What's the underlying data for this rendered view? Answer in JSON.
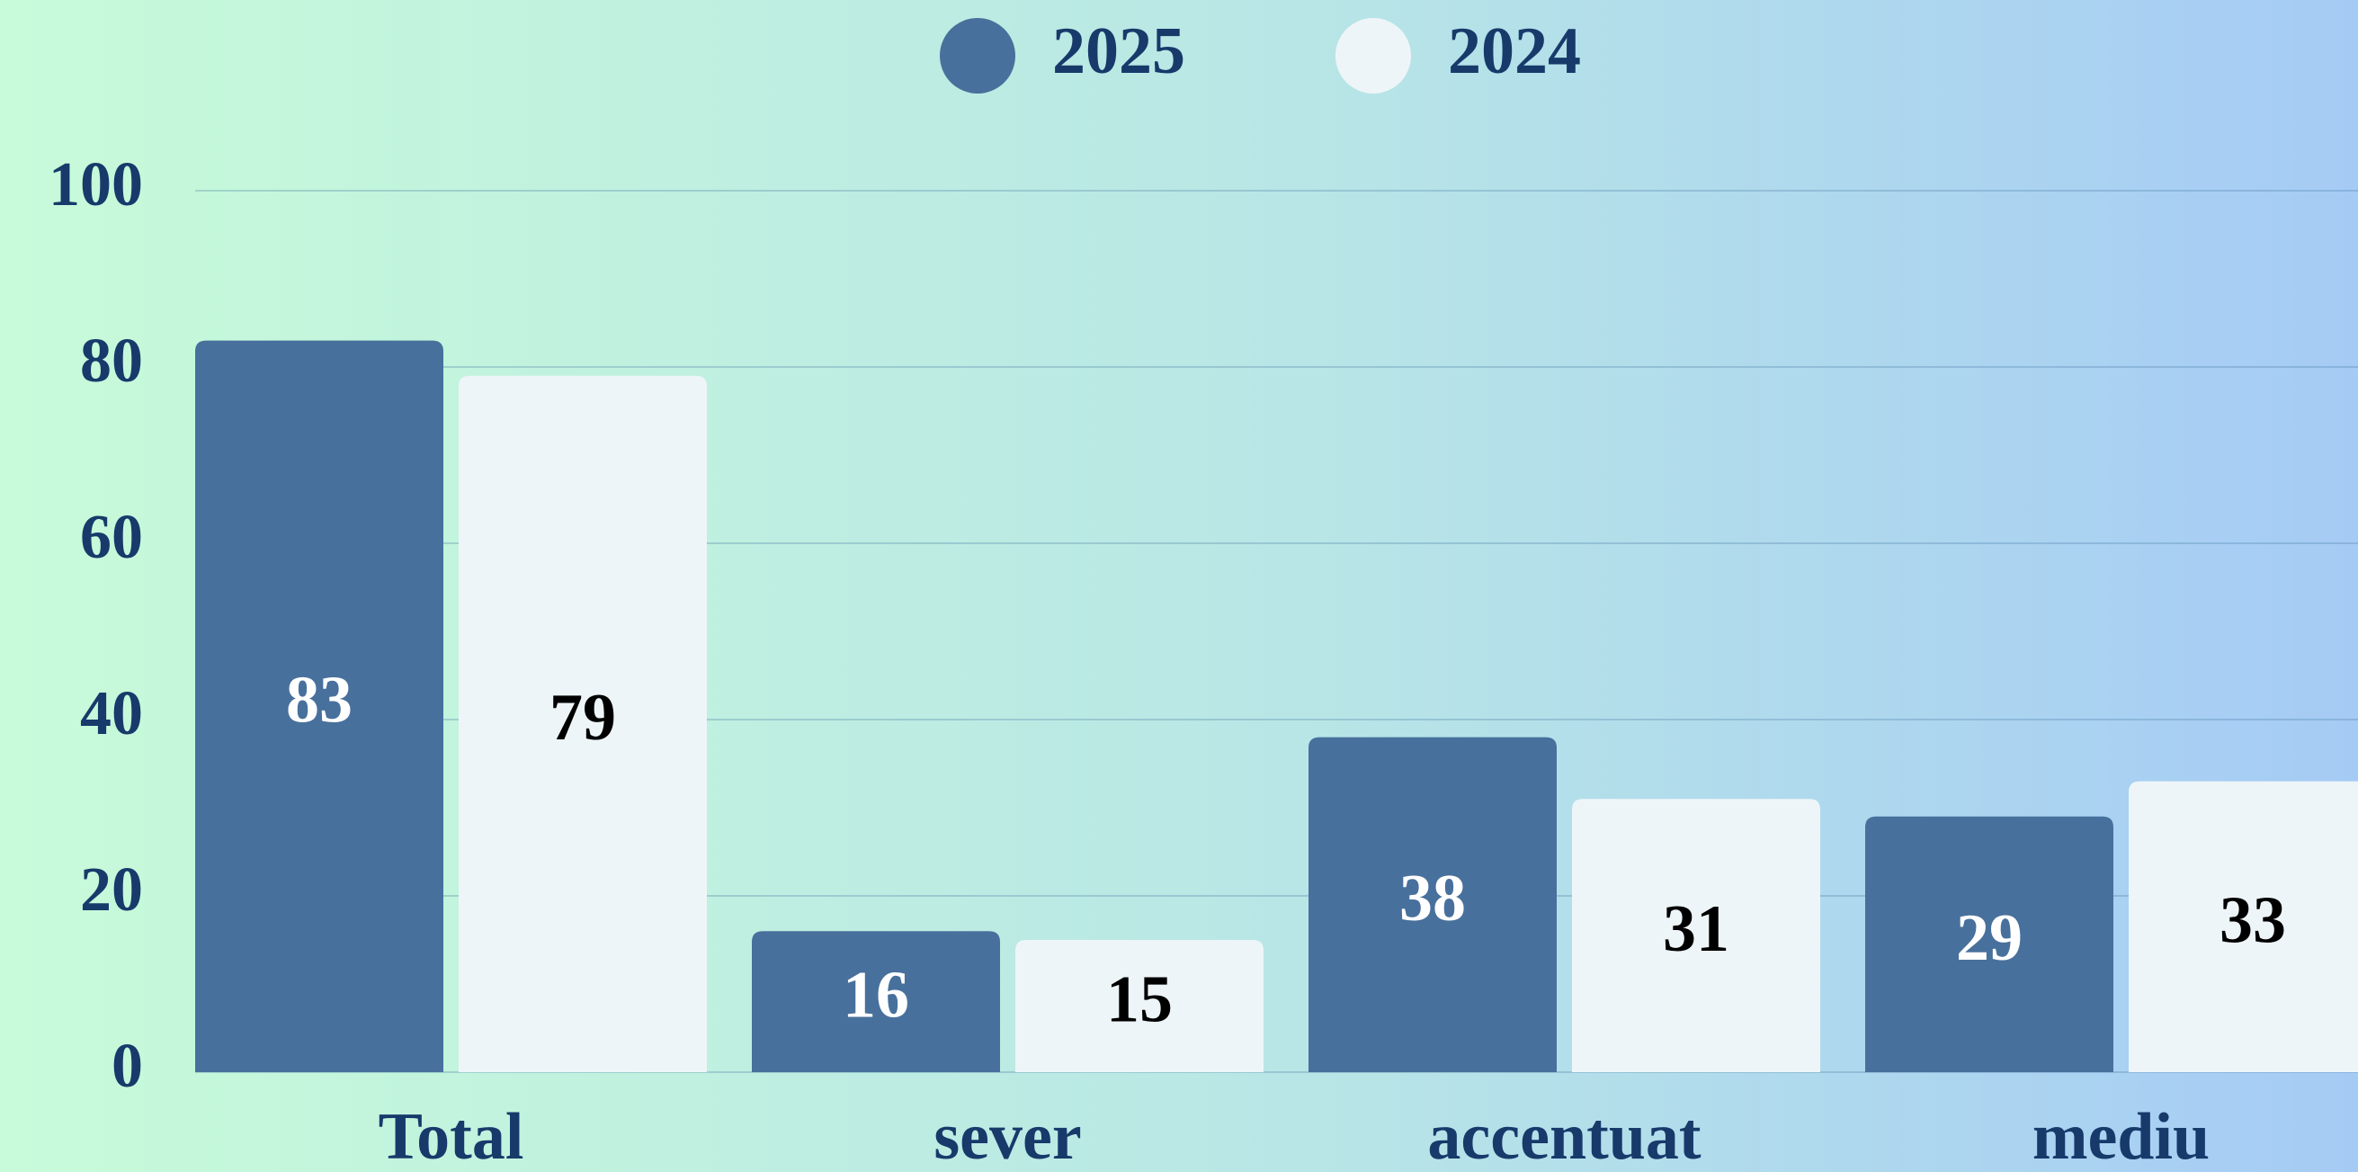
{
  "chart_data": {
    "type": "bar",
    "categories": [
      "Total",
      "sever",
      "accentuat",
      "mediu"
    ],
    "series": [
      {
        "name": "2025",
        "color": "#48709c",
        "values": [
          83,
          16,
          38,
          29
        ]
      },
      {
        "name": "2024",
        "color": "#eef5f8",
        "values": [
          79,
          15,
          31,
          33
        ]
      }
    ],
    "ylim": [
      0,
      100
    ],
    "yticks": [
      0,
      20,
      40,
      60,
      80,
      100
    ],
    "grid": true
  }
}
